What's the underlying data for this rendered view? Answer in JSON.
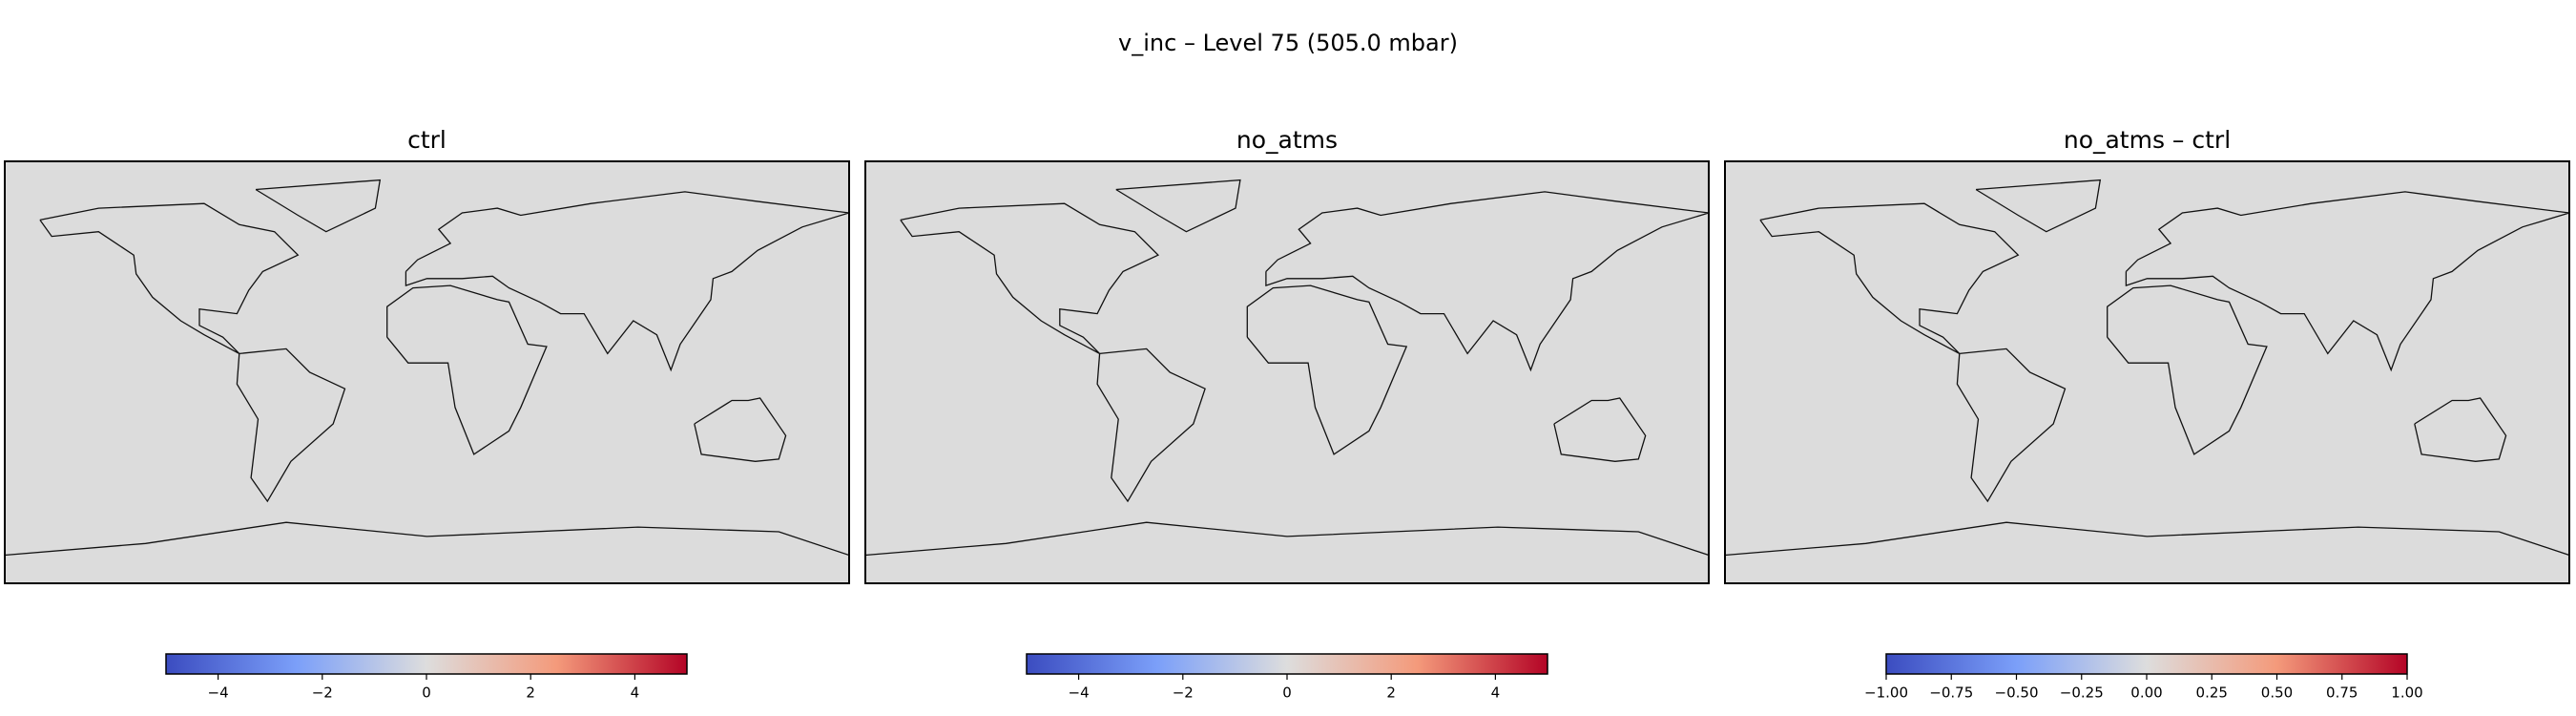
{
  "title": "v_inc – Level 75 (505.0 mbar)",
  "chart_data": [
    {
      "type": "heatmap",
      "title": "ctrl",
      "colormap": "coolwarm",
      "clim": [
        -5,
        5
      ],
      "cticks": [
        {
          "value": -4,
          "label": "−4"
        },
        {
          "value": -2,
          "label": "−2"
        },
        0,
        2,
        4
      ]
    },
    {
      "type": "heatmap",
      "title": "no_atms",
      "colormap": "coolwarm",
      "clim": [
        -5,
        5
      ],
      "cticks": [
        {
          "value": -4,
          "label": "−4"
        },
        {
          "value": -2,
          "label": "−2"
        },
        0,
        2,
        4
      ]
    },
    {
      "type": "heatmap",
      "title": "no_atms – ctrl",
      "colormap": "coolwarm",
      "clim": [
        -1,
        1
      ],
      "cticks": [
        {
          "value": -1,
          "label": "−1.00"
        },
        {
          "value": -0.75,
          "label": "−0.75"
        },
        {
          "value": -0.5,
          "label": "−0.50"
        },
        {
          "value": -0.25,
          "label": "−0.25"
        },
        {
          "value": 0,
          "label": "0.00"
        },
        {
          "value": 0.25,
          "label": "0.25"
        },
        {
          "value": 0.5,
          "label": "0.50"
        },
        {
          "value": 0.75,
          "label": "0.75"
        },
        {
          "value": 1,
          "label": "1.00"
        }
      ]
    }
  ]
}
